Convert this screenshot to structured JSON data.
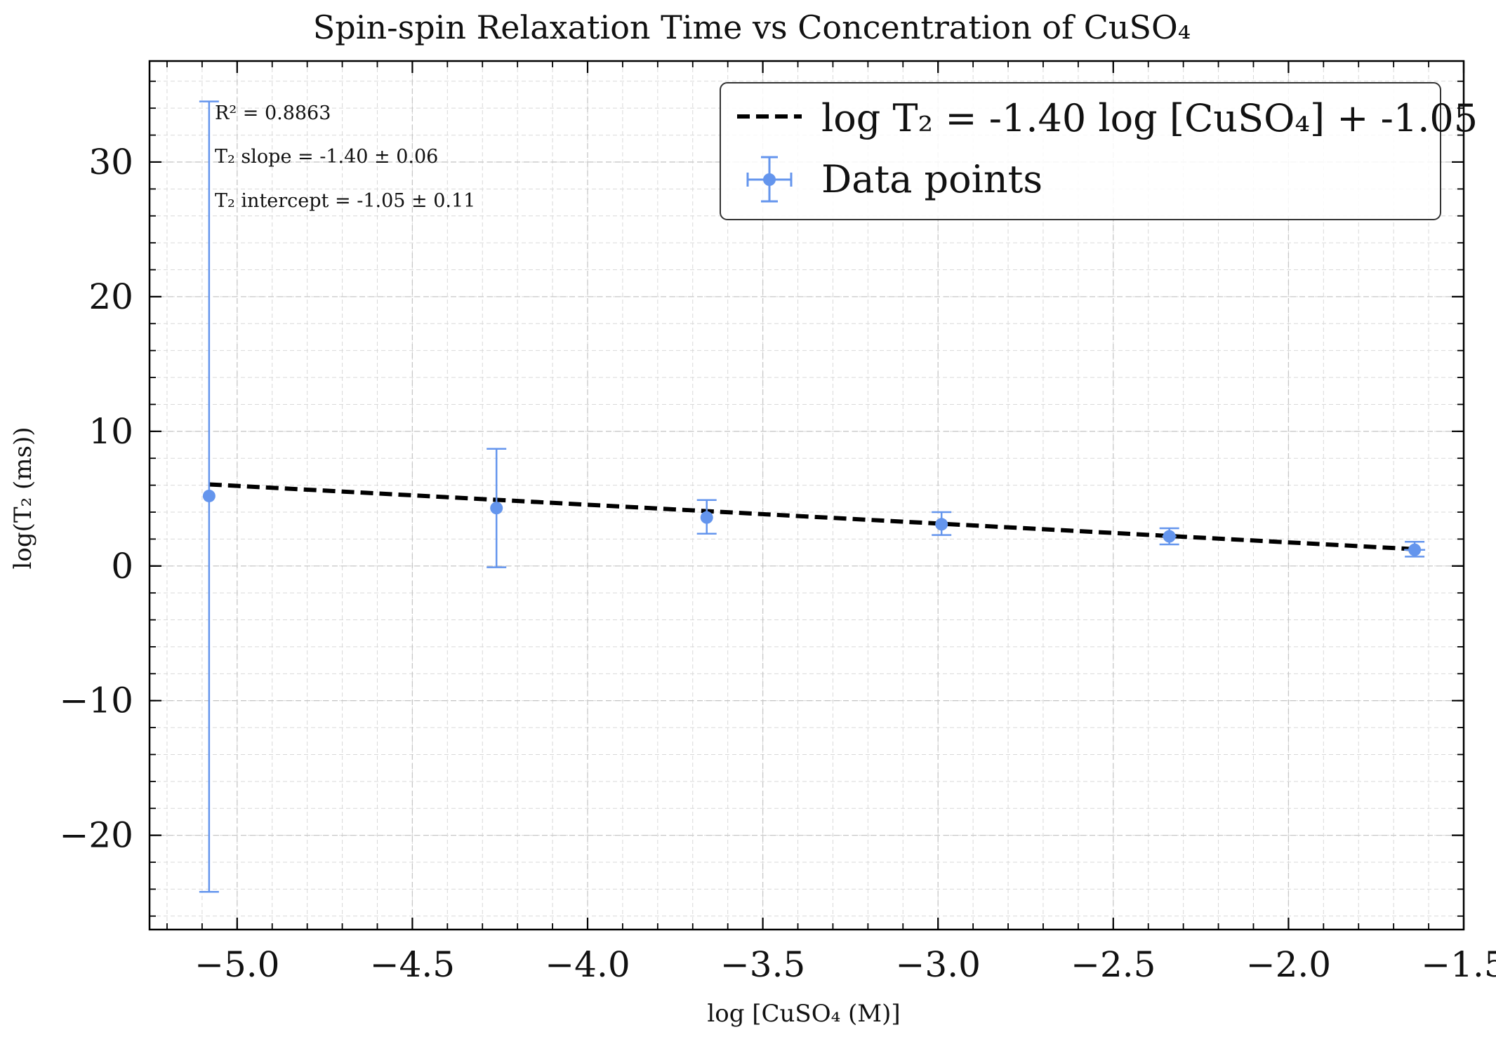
{
  "chart_data": {
    "type": "scatter",
    "title": "Spin-spin Relaxation Time vs Concentration of CuSO₄",
    "xlabel": "log [CuSO₄ (M)]",
    "ylabel": "log(T₂ (ms))",
    "xlim": [
      -5.25,
      -1.5
    ],
    "ylim": [
      -27,
      37.5
    ],
    "xticks": [
      -5.0,
      -4.5,
      -4.0,
      -3.5,
      -3.0,
      -2.5,
      -2.0,
      -1.5
    ],
    "xtick_labels": [
      "−5.0",
      "−4.5",
      "−4.0",
      "−3.5",
      "−3.0",
      "−2.5",
      "−2.0",
      "−1.5"
    ],
    "yticks": [
      -20,
      -10,
      0,
      10,
      20,
      30
    ],
    "ytick_labels": [
      "−20",
      "−10",
      "0",
      "10",
      "20",
      "30"
    ],
    "grid": true,
    "legend_position": "top-right",
    "colors": {
      "data": "#6495ed",
      "fit": "#000000"
    },
    "series": [
      {
        "name": "Data points",
        "kind": "errorbar",
        "x": [
          -5.08,
          -4.26,
          -3.66,
          -2.99,
          -2.34,
          -1.64
        ],
        "y": [
          5.2,
          4.3,
          3.6,
          3.1,
          2.2,
          1.2
        ],
        "yerr_low": [
          -24.2,
          -0.1,
          2.4,
          2.3,
          1.6,
          0.7
        ],
        "yerr_high": [
          34.5,
          8.7,
          4.9,
          4.0,
          2.8,
          1.8
        ],
        "xerr": [
          0.01,
          0.01,
          0.01,
          0.01,
          0.02,
          0.03
        ]
      },
      {
        "name": "log T₂ = -1.40 log [CuSO₄] + -1.05",
        "kind": "fit",
        "x": [
          -5.08,
          -1.64
        ],
        "y": [
          6.06,
          1.25
        ]
      }
    ],
    "annotations": [
      "R² = 0.8863",
      "T₂ slope = -1.40 ± 0.06",
      "T₂ intercept = -1.05 ± 0.11"
    ]
  }
}
